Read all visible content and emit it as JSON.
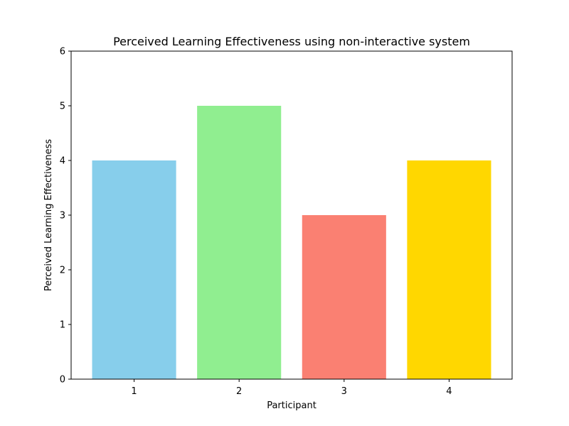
{
  "chart_data": {
    "type": "bar",
    "title": "Perceived Learning Effectiveness using non-interactive system",
    "xlabel": "Participant",
    "ylabel": "Perceived Learning Effectiveness",
    "categories": [
      "1",
      "2",
      "3",
      "4"
    ],
    "values": [
      4,
      5,
      3,
      4
    ],
    "colors": [
      "#87ceeb",
      "#90ee90",
      "#fa8072",
      "#ffd700"
    ],
    "ylim": [
      0,
      6
    ],
    "yticks": [
      "0",
      "1",
      "2",
      "3",
      "4",
      "5",
      "6"
    ],
    "grid": false,
    "legend": false
  }
}
